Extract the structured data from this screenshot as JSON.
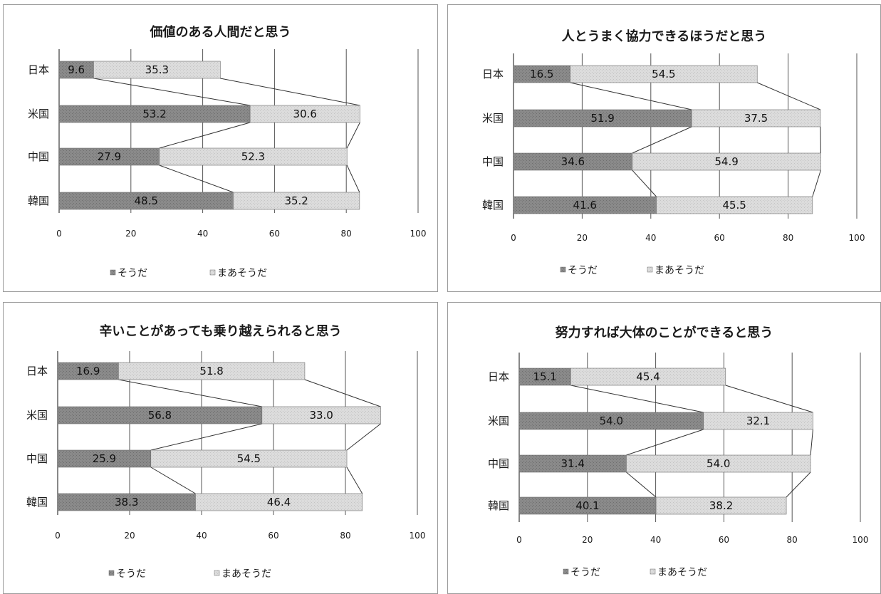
{
  "chart_data": [
    {
      "type": "bar",
      "title": "価値のある人間だと思う",
      "categories": [
        "日本",
        "米国",
        "中国",
        "韓国"
      ],
      "series": [
        {
          "name": "そうだ",
          "values": [
            9.6,
            53.2,
            27.9,
            48.5
          ]
        },
        {
          "name": "まあそうだ",
          "values": [
            35.3,
            30.6,
            52.3,
            35.2
          ]
        }
      ],
      "x_ticks": [
        "0",
        "20",
        "40",
        "60",
        "80",
        "100"
      ],
      "xlim": [
        0,
        100
      ],
      "stacked": true,
      "orientation": "horizontal",
      "grid": true,
      "legend_position": "bottom"
    },
    {
      "type": "bar",
      "title": "人とうまく協力できるほうだと思う",
      "categories": [
        "日本",
        "米国",
        "中国",
        "韓国"
      ],
      "series": [
        {
          "name": "そうだ",
          "values": [
            16.5,
            51.9,
            34.6,
            41.6
          ]
        },
        {
          "name": "まあそうだ",
          "values": [
            54.5,
            37.5,
            54.9,
            45.5
          ]
        }
      ],
      "x_ticks": [
        "0",
        "20",
        "40",
        "60",
        "80",
        "100"
      ],
      "xlim": [
        0,
        100
      ],
      "stacked": true,
      "orientation": "horizontal",
      "grid": true,
      "legend_position": "bottom"
    },
    {
      "type": "bar",
      "title": "辛いことがあっても乗り越えられると思う",
      "categories": [
        "日本",
        "米国",
        "中国",
        "韓国"
      ],
      "series": [
        {
          "name": "そうだ",
          "values": [
            16.9,
            56.8,
            25.9,
            38.3
          ]
        },
        {
          "name": "まあそうだ",
          "values": [
            51.8,
            33.0,
            54.5,
            46.4
          ]
        }
      ],
      "x_ticks": [
        "0",
        "20",
        "40",
        "60",
        "80",
        "100"
      ],
      "xlim": [
        0,
        100
      ],
      "stacked": true,
      "orientation": "horizontal",
      "grid": true,
      "legend_position": "bottom"
    },
    {
      "type": "bar",
      "title": "努力すれば大体のことができると思う",
      "categories": [
        "日本",
        "米国",
        "中国",
        "韓国"
      ],
      "series": [
        {
          "name": "そうだ",
          "values": [
            15.1,
            54.0,
            31.4,
            40.1
          ]
        },
        {
          "name": "まあそうだ",
          "values": [
            45.4,
            32.1,
            54.0,
            38.2
          ]
        }
      ],
      "x_ticks": [
        "0",
        "20",
        "40",
        "60",
        "80",
        "100"
      ],
      "xlim": [
        0,
        100
      ],
      "stacked": true,
      "orientation": "horizontal",
      "grid": true,
      "legend_position": "bottom"
    }
  ],
  "colors": {
    "series_1": "#8a8a8a",
    "series_2": "#dcdcdc",
    "bar_outline": "#6a6a6a",
    "grid": "#555555",
    "connector": "#333333"
  }
}
